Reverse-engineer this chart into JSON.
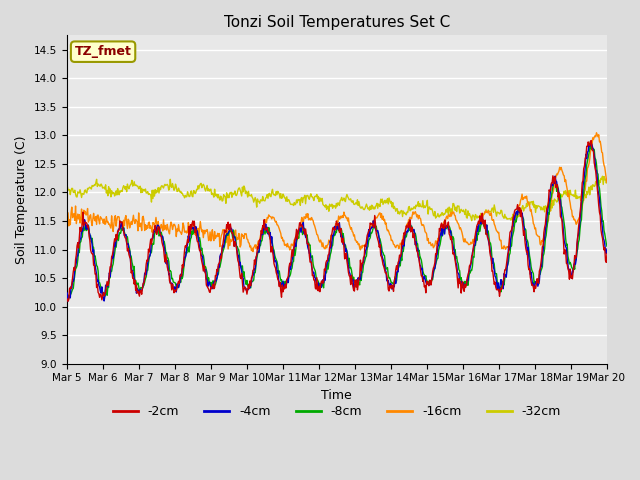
{
  "title": "Tonzi Soil Temperatures Set C",
  "xlabel": "Time",
  "ylabel": "Soil Temperature (C)",
  "annotation": "TZ_fmet",
  "annotation_color": "#8B0000",
  "annotation_bg": "#FFFFCC",
  "annotation_edge": "#999900",
  "ylim": [
    9.0,
    14.75
  ],
  "yticks": [
    9.0,
    9.5,
    10.0,
    10.5,
    11.0,
    11.5,
    12.0,
    12.5,
    13.0,
    13.5,
    14.0,
    14.5
  ],
  "xtick_labels": [
    "Mar 5",
    "Mar 6",
    "Mar 7",
    "Mar 8",
    "Mar 9",
    "Mar 10",
    "Mar 11",
    "Mar 12",
    "Mar 13",
    "Mar 14",
    "Mar 15",
    "Mar 16",
    "Mar 17",
    "Mar 18",
    "Mar 19",
    "Mar 20"
  ],
  "series_colors": [
    "#CC0000",
    "#0000CC",
    "#00AA00",
    "#FF8800",
    "#CCCC00"
  ],
  "series_labels": [
    "-2cm",
    "-4cm",
    "-8cm",
    "-16cm",
    "-32cm"
  ],
  "fig_bg": "#DCDCDC",
  "plot_bg": "#E8E8E8",
  "grid_color": "#FFFFFF",
  "n_points": 720,
  "days": 15
}
